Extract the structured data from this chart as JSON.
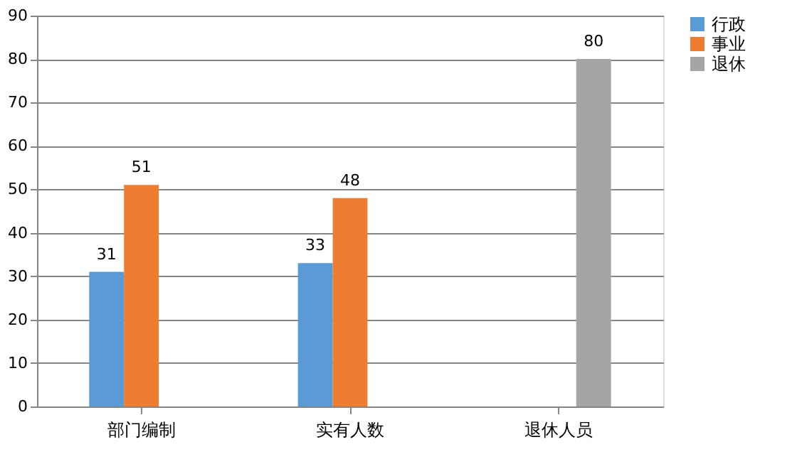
{
  "chart_data": {
    "type": "bar",
    "categories": [
      "部门编制",
      "实有人数",
      "退休人员"
    ],
    "series": [
      {
        "name": "行政",
        "color": "#5b9bd5",
        "values": [
          31,
          33,
          null
        ]
      },
      {
        "name": "事业",
        "color": "#ed7d31",
        "values": [
          51,
          48,
          null
        ]
      },
      {
        "name": "退休",
        "color": "#a5a5a5",
        "values": [
          null,
          null,
          80
        ]
      }
    ],
    "ylim": [
      0,
      90
    ],
    "yticks": [
      0,
      10,
      20,
      30,
      40,
      50,
      60,
      70,
      80,
      90
    ],
    "grid": "y",
    "legend": "right",
    "data_labels": true
  }
}
